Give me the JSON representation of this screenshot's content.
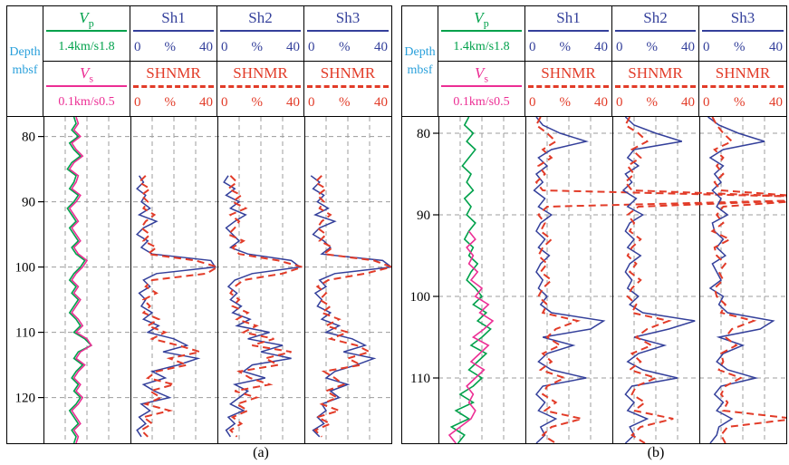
{
  "colors": {
    "depth_label": "#2AA0DB",
    "vp": "#00A14B",
    "vs": "#EC2E94",
    "sh": "#34409B",
    "nmr": "#E23B28",
    "grid": "#9C9C9C"
  },
  "chart_data": [
    {
      "type": "line",
      "id": "a",
      "caption": "(a)",
      "depth_axis": {
        "label_line1": "Depth",
        "label_line2": "mbsf",
        "ticks": [
          80,
          90,
          100,
          110,
          120
        ],
        "range": [
          77,
          127
        ]
      },
      "vp": {
        "symbol": "V",
        "symbol_sub": "p",
        "scale_text": "1.4km/s1.8",
        "range": [
          1.4,
          1.8
        ],
        "start": 77,
        "step": 1,
        "values": [
          1.54,
          1.55,
          1.53,
          1.56,
          1.52,
          1.54,
          1.57,
          1.53,
          1.51,
          1.55,
          1.54,
          1.52,
          1.56,
          1.54,
          1.51,
          1.53,
          1.55,
          1.52,
          1.54,
          1.56,
          1.53,
          1.55,
          1.59,
          1.57,
          1.54,
          1.52,
          1.55,
          1.53,
          1.56,
          1.54,
          1.52,
          1.55,
          1.57,
          1.54,
          1.59,
          1.62,
          1.56,
          1.54,
          1.58,
          1.55,
          1.53,
          1.56,
          1.54,
          1.57,
          1.55,
          1.52,
          1.54,
          1.56,
          1.53,
          1.55,
          1.54
        ]
      },
      "vs": {
        "symbol": "V",
        "symbol_sub": "s",
        "scale_text": "0.1km/s0.5",
        "range": [
          0.1,
          0.5
        ],
        "start": 77,
        "step": 1,
        "values": [
          0.25,
          0.26,
          0.24,
          0.27,
          0.23,
          0.25,
          0.28,
          0.24,
          0.22,
          0.26,
          0.25,
          0.23,
          0.27,
          0.25,
          0.22,
          0.24,
          0.26,
          0.23,
          0.25,
          0.27,
          0.24,
          0.26,
          0.3,
          0.28,
          0.25,
          0.23,
          0.26,
          0.24,
          0.27,
          0.25,
          0.23,
          0.26,
          0.28,
          0.25,
          0.3,
          0.32,
          0.27,
          0.25,
          0.29,
          0.26,
          0.24,
          0.27,
          0.25,
          0.28,
          0.26,
          0.23,
          0.25,
          0.27,
          0.24,
          0.26,
          0.25
        ]
      },
      "sh_header": {
        "min": "0",
        "unit": "%",
        "max": "40",
        "range": [
          0,
          40
        ]
      },
      "nmr_label": "SHNMR",
      "tracks": [
        {
          "name": "Sh1",
          "sh": {
            "start": 86,
            "step": 1,
            "values": [
              4,
              6,
              3,
              7,
              5,
              9,
              4,
              12,
              6,
              3,
              8,
              5,
              10,
              37,
              39,
              12,
              6,
              9,
              4,
              7,
              5,
              10,
              6,
              13,
              8,
              20,
              26,
              15,
              31,
              22,
              10,
              16,
              6,
              11,
              18,
              5,
              9,
              4,
              7,
              3,
              5
            ]
          },
          "nmr": {
            "start": 86,
            "step": 1,
            "values": [
              7,
              4,
              9,
              5,
              8,
              6,
              11,
              7,
              5,
              9,
              6,
              12,
              8,
              30,
              40,
              35,
              10,
              7,
              12,
              6,
              9,
              6,
              13,
              8,
              16,
              10,
              22,
              32,
              18,
              26,
              12,
              8,
              20,
              9,
              14,
              7,
              18,
              6,
              10,
              5,
              8
            ]
          }
        },
        {
          "name": "Sh2",
          "sh": {
            "start": 86,
            "step": 1,
            "values": [
              5,
              3,
              8,
              4,
              10,
              6,
              13,
              8,
              4,
              7,
              10,
              6,
              14,
              34,
              38,
              16,
              8,
              5,
              9,
              6,
              11,
              7,
              15,
              9,
              24,
              14,
              30,
              20,
              34,
              16,
              12,
              22,
              8,
              14,
              10,
              6,
              12,
              5,
              8,
              4,
              6
            ]
          },
          "nmr": {
            "start": 86,
            "step": 1,
            "values": [
              6,
              9,
              5,
              11,
              7,
              13,
              6,
              10,
              8,
              5,
              12,
              7,
              10,
              28,
              39,
              30,
              12,
              8,
              6,
              10,
              7,
              14,
              9,
              18,
              12,
              26,
              16,
              34,
              22,
              28,
              10,
              15,
              24,
              8,
              18,
              9,
              14,
              7,
              11,
              6,
              9
            ]
          }
        },
        {
          "name": "Sh3",
          "sh": {
            "start": 86,
            "step": 1,
            "values": [
              3,
              7,
              4,
              9,
              6,
              11,
              5,
              14,
              7,
              4,
              9,
              12,
              8,
              36,
              40,
              14,
              7,
              10,
              5,
              8,
              6,
              12,
              8,
              16,
              10,
              22,
              28,
              18,
              32,
              24,
              14,
              10,
              20,
              12,
              16,
              8,
              10,
              6,
              9,
              4,
              7
            ]
          },
          "nmr": {
            "start": 86,
            "step": 1,
            "values": [
              8,
              5,
              10,
              6,
              9,
              7,
              12,
              8,
              6,
              10,
              7,
              13,
              9,
              32,
              40,
              28,
              11,
              6,
              10,
              7,
              12,
              8,
              16,
              10,
              20,
              12,
              24,
              30,
              20,
              26,
              9,
              14,
              18,
              10,
              15,
              8,
              16,
              6,
              12,
              5,
              8
            ]
          }
        }
      ]
    },
    {
      "type": "line",
      "id": "b",
      "caption": "(b)",
      "depth_axis": {
        "label_line1": "Depth",
        "label_line2": "mbsf",
        "ticks": [
          80,
          90,
          100,
          110
        ],
        "range": [
          78,
          118
        ]
      },
      "vp": {
        "symbol": "V",
        "symbol_sub": "p",
        "scale_text": "1.4km/s1.8",
        "range": [
          1.4,
          1.8
        ],
        "start": 78,
        "step": 1,
        "values": [
          1.54,
          1.52,
          1.56,
          1.53,
          1.57,
          1.54,
          1.51,
          1.55,
          1.53,
          1.56,
          1.52,
          1.55,
          1.53,
          1.57,
          1.54,
          1.52,
          1.56,
          1.54,
          1.58,
          1.55,
          1.53,
          1.57,
          1.6,
          1.56,
          1.62,
          1.58,
          1.64,
          1.6,
          1.55,
          1.62,
          1.58,
          1.54,
          1.6,
          1.56,
          1.5,
          1.56,
          1.48,
          1.54,
          1.46,
          1.52,
          1.49
        ]
      },
      "vs": {
        "symbol": "V",
        "symbol_sub": "s",
        "scale_text": "0.1km/s0.5",
        "range": [
          0.1,
          0.5
        ],
        "start": 92,
        "step": 1,
        "values": [
          0.24,
          0.27,
          0.23,
          0.26,
          0.24,
          0.28,
          0.25,
          0.3,
          0.27,
          0.33,
          0.29,
          0.35,
          0.31,
          0.26,
          0.33,
          0.29,
          0.25,
          0.31,
          0.27,
          0.23,
          0.26,
          0.24,
          0.27,
          0.25,
          0.2,
          0.15,
          0.18
        ]
      },
      "sh_header": {
        "min": "0",
        "unit": "%",
        "max": "40",
        "range": [
          0,
          40
        ]
      },
      "nmr_label": "SHNMR",
      "tracks": [
        {
          "name": "Sh1",
          "sh": {
            "start": 78,
            "step": 1,
            "values": [
              5,
              8,
              16,
              28,
              12,
              6,
              10,
              5,
              8,
              4,
              9,
              6,
              12,
              7,
              5,
              9,
              6,
              11,
              7,
              5,
              8,
              6,
              10,
              7,
              12,
              36,
              30,
              8,
              22,
              10,
              6,
              12,
              28,
              8,
              5,
              9,
              6,
              14,
              7,
              9,
              5
            ]
          },
          "nmr": {
            "start": 78,
            "step": 1,
            "values": [
              7,
              5,
              10,
              14,
              8,
              12,
              6,
              9,
              5,
              8,
              160,
              10,
              6,
              9,
              7,
              12,
              8,
              6,
              10,
              7,
              12,
              8,
              6,
              10,
              8,
              24,
              14,
              10,
              16,
              8,
              12,
              7,
              18,
              10,
              8,
              14,
              9,
              26,
              12,
              8,
              14
            ]
          }
        },
        {
          "name": "Sh2",
          "sh": {
            "start": 78,
            "step": 1,
            "values": [
              6,
              10,
              20,
              32,
              10,
              7,
              12,
              6,
              9,
              5,
              11,
              7,
              14,
              8,
              6,
              10,
              7,
              13,
              8,
              6,
              9,
              7,
              12,
              8,
              14,
              38,
              26,
              10,
              24,
              12,
              7,
              14,
              30,
              9,
              6,
              10,
              7,
              16,
              8,
              10,
              6
            ]
          },
          "nmr": {
            "start": 78,
            "step": 1,
            "values": [
              8,
              6,
              12,
              16,
              9,
              13,
              7,
              10,
              6,
              9,
              110,
              12,
              7,
              10,
              8,
              13,
              9,
              7,
              11,
              8,
              13,
              9,
              7,
              11,
              9,
              26,
              16,
              11,
              18,
              9,
              13,
              8,
              20,
              11,
              9,
              15,
              10,
              28,
              13,
              9,
              15
            ]
          }
        },
        {
          "name": "Sh3",
          "sh": {
            "start": 78,
            "step": 1,
            "values": [
              4,
              9,
              18,
              30,
              11,
              5,
              11,
              7,
              10,
              6,
              10,
              8,
              13,
              6,
              7,
              11,
              8,
              12,
              6,
              8,
              10,
              5,
              11,
              9,
              13,
              34,
              28,
              9,
              20,
              11,
              8,
              13,
              26,
              10,
              7,
              11,
              8,
              15,
              9,
              8,
              5
            ]
          },
          "nmr": {
            "start": 78,
            "step": 1,
            "values": [
              6,
              8,
              11,
              15,
              7,
              11,
              8,
              11,
              7,
              10,
              60,
              11,
              8,
              11,
              6,
              14,
              7,
              8,
              12,
              9,
              11,
              7,
              8,
              12,
              10,
              25,
              15,
              12,
              17,
              10,
              11,
              9,
              19,
              12,
              10,
              13,
              11,
              44,
              13,
              10,
              12
            ]
          }
        }
      ]
    }
  ]
}
